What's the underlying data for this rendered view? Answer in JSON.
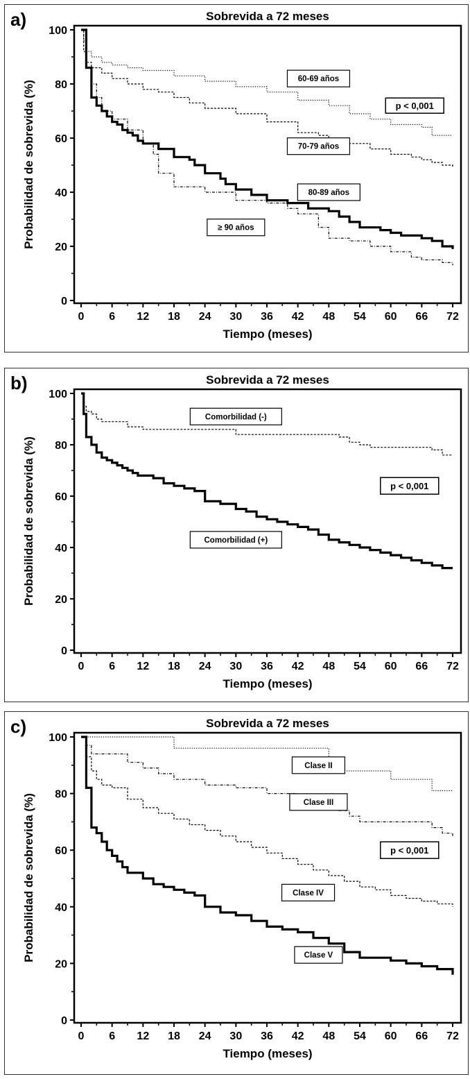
{
  "panels": [
    {
      "letter": "a)",
      "chart_data": {
        "type": "line",
        "title": "Sobrevida a 72 meses",
        "xlabel": "Tiempo (meses)",
        "ylabel": "Probabilidad de sobrevida (%)",
        "xlim": [
          0,
          72
        ],
        "ylim": [
          0,
          100
        ],
        "xticks": [
          0,
          6,
          12,
          18,
          24,
          30,
          36,
          42,
          48,
          54,
          60,
          66,
          72
        ],
        "yticks": [
          0,
          20,
          40,
          60,
          80,
          100
        ],
        "grid": false,
        "annotation": "p < 0,001",
        "series": [
          {
            "name": "60-69 años",
            "style": "dotted",
            "weight": "thin",
            "x": [
              0,
              0.5,
              1,
              2,
              4,
              6,
              9,
              12,
              18,
              24,
              30,
              36,
              42,
              48,
              52,
              56,
              60,
              66,
              68,
              72
            ],
            "y": [
              100,
              96,
              92,
              90,
              88,
              87,
              86,
              85,
              83,
              81,
              79,
              77,
              74,
              72,
              69,
              67,
              65,
              64,
              61,
              61
            ]
          },
          {
            "name": "70-79 años",
            "style": "dashed",
            "weight": "thin",
            "x": [
              0,
              0.5,
              1,
              2,
              4,
              6,
              9,
              12,
              15,
              18,
              21,
              24,
              30,
              36,
              42,
              46,
              48,
              52,
              56,
              60,
              64,
              66,
              68,
              70,
              72
            ],
            "y": [
              100,
              92,
              88,
              86,
              84,
              82,
              80,
              78,
              77,
              75,
              73,
              71,
              69,
              66,
              62,
              61,
              60,
              58,
              56,
              54,
              53,
              52,
              51,
              50,
              49
            ]
          },
          {
            "name": "80-89 años",
            "style": "solid",
            "weight": "thick",
            "x": [
              0,
              1,
              2,
              3,
              4,
              5,
              6,
              7,
              8,
              9,
              10,
              11,
              12,
              15,
              18,
              21,
              22,
              24,
              27,
              28,
              30,
              33,
              36,
              40,
              44,
              48,
              50,
              52,
              54,
              58,
              60,
              62,
              66,
              68,
              70,
              72
            ],
            "y": [
              100,
              86,
              75,
              72,
              70,
              68,
              66,
              65,
              63,
              62,
              61,
              59,
              58,
              56,
              53,
              52,
              50,
              47,
              45,
              43,
              41,
              39,
              37,
              36,
              34,
              33,
              31,
              29,
              27,
              26,
              25,
              24,
              23,
              22,
              20,
              19
            ]
          },
          {
            "name": "≥ 90 años",
            "style": "dashdot",
            "weight": "thin",
            "x": [
              0,
              1,
              2,
              3,
              4,
              6,
              9,
              12,
              14,
              15,
              18,
              24,
              30,
              36,
              40,
              42,
              46,
              48,
              52,
              56,
              60,
              64,
              66,
              70,
              72
            ],
            "y": [
              100,
              86,
              80,
              75,
              70,
              67,
              63,
              58,
              54,
              47,
              42,
              40,
              37,
              36,
              34,
              32,
              27,
              23,
              22,
              20,
              18,
              16,
              15,
              14,
              13
            ]
          }
        ],
        "labels": [
          {
            "text": "60-69 años",
            "x": 46,
            "y": 82
          },
          {
            "text": "70-79 años",
            "x": 46,
            "y": 57
          },
          {
            "text": "80-89 años",
            "x": 48,
            "y": 40
          },
          {
            "text": "≥ 90 años",
            "x": 30,
            "y": 27
          }
        ]
      }
    },
    {
      "letter": "b)",
      "chart_data": {
        "type": "line",
        "title": "Sobrevida a 72 meses",
        "xlabel": "Tiempo (meses)",
        "ylabel": "Probabilidad de sobrevida (%)",
        "xlim": [
          0,
          72
        ],
        "ylim": [
          0,
          100
        ],
        "xticks": [
          0,
          6,
          12,
          18,
          24,
          30,
          36,
          42,
          48,
          54,
          60,
          66,
          72
        ],
        "yticks": [
          0,
          20,
          40,
          60,
          80,
          100
        ],
        "grid": false,
        "annotation": "p < 0,001",
        "series": [
          {
            "name": "Comorbilidad (-)",
            "style": "dashed",
            "weight": "thin",
            "x": [
              0,
              0.5,
              1,
              2,
              3,
              4,
              6,
              9,
              12,
              18,
              24,
              30,
              36,
              48,
              50,
              52,
              54,
              56,
              60,
              66,
              68,
              70,
              72
            ],
            "y": [
              100,
              95,
              93,
              92,
              90,
              89,
              89,
              87,
              86,
              86,
              86,
              84,
              84,
              84,
              83,
              81,
              80,
              79,
              79,
              79,
              78,
              76,
              76
            ]
          },
          {
            "name": "Comorbilidad (+)",
            "style": "solid",
            "weight": "thick",
            "x": [
              0,
              0.5,
              1,
              2,
              3,
              4,
              5,
              6,
              7,
              8,
              9,
              10,
              11,
              12,
              14,
              16,
              18,
              20,
              22,
              24,
              27,
              30,
              32,
              34,
              36,
              38,
              40,
              42,
              44,
              46,
              48,
              50,
              52,
              54,
              56,
              58,
              60,
              62,
              64,
              66,
              68,
              70,
              72
            ],
            "y": [
              100,
              92,
              83,
              80,
              77,
              75,
              74,
              73,
              72,
              71,
              70,
              69,
              68,
              68,
              67,
              65,
              64,
              63,
              62,
              58,
              57,
              55,
              54,
              52,
              51,
              50,
              49,
              48,
              47,
              45,
              43,
              42,
              41,
              40,
              39,
              38,
              37,
              36,
              35,
              34,
              33,
              32,
              32
            ]
          }
        ],
        "labels": [
          {
            "text": "Comorbilidad (-)",
            "x": 30,
            "y": 91
          },
          {
            "text": "Comorbilidad (+)",
            "x": 30,
            "y": 43
          }
        ]
      }
    },
    {
      "letter": "c)",
      "chart_data": {
        "type": "line",
        "title": "Sobrevida a 72 meses",
        "xlabel": "Tiempo (meses)",
        "ylabel": "Probabilidad de sobrevida (%)",
        "xlim": [
          0,
          72
        ],
        "ylim": [
          0,
          100
        ],
        "xticks": [
          0,
          6,
          12,
          18,
          24,
          30,
          36,
          42,
          48,
          54,
          60,
          66,
          72
        ],
        "yticks": [
          0,
          20,
          40,
          60,
          80,
          100
        ],
        "grid": false,
        "annotation": "p < 0,001",
        "series": [
          {
            "name": "Clase II",
            "style": "dotted",
            "weight": "thin",
            "x": [
              0,
              12,
              18,
              24,
              42,
              48,
              50,
              54,
              60,
              66,
              68,
              72
            ],
            "y": [
              100,
              100,
              96,
              96,
              96,
              92,
              88,
              88,
              85,
              85,
              81,
              81
            ]
          },
          {
            "name": "Clase III",
            "style": "dashdot",
            "weight": "thin",
            "x": [
              0,
              1,
              2,
              6,
              9,
              12,
              15,
              18,
              24,
              30,
              36,
              42,
              44,
              46,
              48,
              50,
              52,
              54,
              60,
              64,
              66,
              68,
              70,
              72
            ],
            "y": [
              100,
              97,
              94,
              94,
              91,
              89,
              87,
              85,
              83,
              82,
              80,
              79,
              78,
              77,
              75,
              74,
              72,
              70,
              70,
              70,
              70,
              68,
              66,
              65
            ]
          },
          {
            "name": "Clase IV",
            "style": "dashed",
            "weight": "thin",
            "x": [
              0,
              1,
              2,
              3,
              4,
              6,
              9,
              12,
              15,
              18,
              21,
              24,
              27,
              30,
              33,
              36,
              39,
              42,
              45,
              48,
              51,
              54,
              57,
              60,
              63,
              66,
              69,
              72
            ],
            "y": [
              100,
              93,
              88,
              85,
              83,
              82,
              78,
              75,
              73,
              71,
              69,
              67,
              65,
              63,
              61,
              59,
              57,
              55,
              53,
              51,
              49,
              47,
              46,
              44,
              43,
              42,
              41,
              40
            ]
          },
          {
            "name": "Clase V",
            "style": "solid",
            "weight": "thick",
            "x": [
              0,
              1,
              2,
              3,
              4,
              5,
              6,
              7,
              8,
              9,
              10,
              12,
              14,
              16,
              18,
              20,
              22,
              24,
              27,
              30,
              33,
              36,
              39,
              42,
              45,
              48,
              51,
              54,
              57,
              60,
              63,
              66,
              69,
              72
            ],
            "y": [
              100,
              82,
              68,
              66,
              63,
              60,
              58,
              56,
              54,
              52,
              52,
              50,
              48,
              47,
              46,
              45,
              44,
              40,
              38,
              37,
              35,
              33,
              32,
              31,
              29,
              27,
              24,
              22,
              22,
              21,
              20,
              19,
              18,
              16
            ]
          }
        ],
        "labels": [
          {
            "text": "Clase II",
            "x": 46,
            "y": 90
          },
          {
            "text": "Clase III",
            "x": 46,
            "y": 77
          },
          {
            "text": "Clase IV",
            "x": 44,
            "y": 45
          },
          {
            "text": "Clase V",
            "x": 46,
            "y": 23
          }
        ]
      }
    }
  ]
}
